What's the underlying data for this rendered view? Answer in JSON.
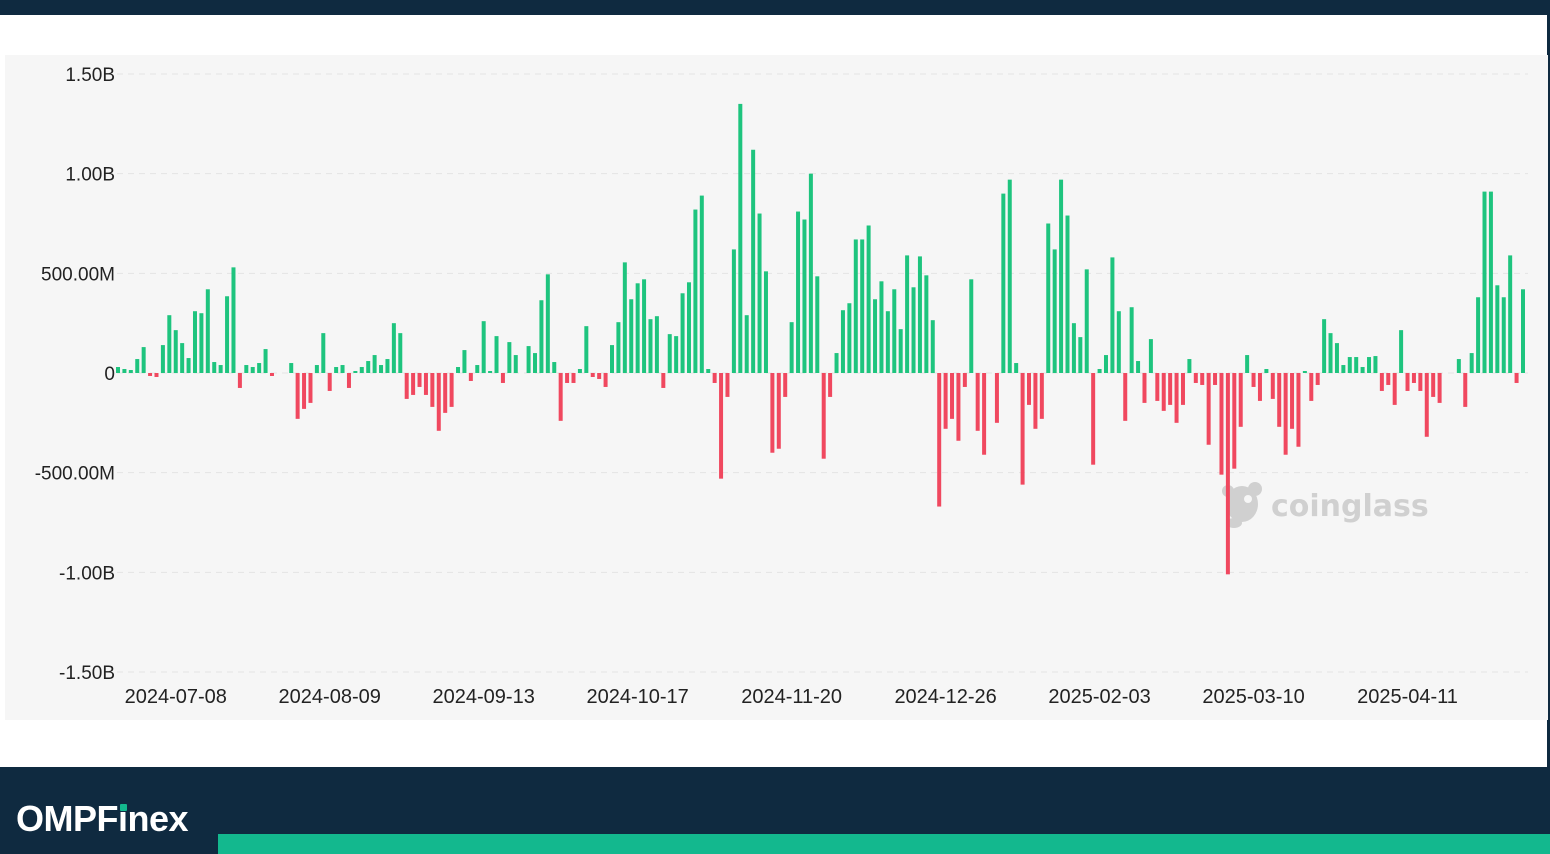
{
  "chart_data": {
    "type": "bar",
    "title": "",
    "xlabel": "",
    "ylabel": "",
    "ylim": [
      -1500000000,
      1500000000
    ],
    "yticks": [
      {
        "value": 1500000000,
        "label": "1.50B"
      },
      {
        "value": 1000000000,
        "label": "1.00B"
      },
      {
        "value": 500000000,
        "label": "500.00M"
      },
      {
        "value": 0,
        "label": "0"
      },
      {
        "value": -500000000,
        "label": "-500.00M"
      },
      {
        "value": -1000000000,
        "label": "-1.00B"
      },
      {
        "value": -1500000000,
        "label": "-1.50B"
      }
    ],
    "xticks": [
      {
        "index": 9,
        "label": "2024-07-08"
      },
      {
        "index": 33,
        "label": "2024-08-09"
      },
      {
        "index": 57,
        "label": "2024-09-13"
      },
      {
        "index": 81,
        "label": "2024-10-17"
      },
      {
        "index": 105,
        "label": "2024-11-20"
      },
      {
        "index": 129,
        "label": "2024-12-26"
      },
      {
        "index": 153,
        "label": "2025-02-03"
      },
      {
        "index": 177,
        "label": "2025-03-10"
      },
      {
        "index": 201,
        "label": "2025-04-11"
      }
    ],
    "positive_color": "#1ec47e",
    "negative_color": "#f0485f",
    "unit": "USD millions",
    "values": [
      30,
      20,
      15,
      70,
      130,
      -15,
      -20,
      140,
      290,
      215,
      150,
      75,
      310,
      300,
      420,
      55,
      40,
      385,
      530,
      -75,
      40,
      30,
      50,
      120,
      -15,
      0,
      0,
      50,
      -230,
      -180,
      -150,
      40,
      200,
      -90,
      30,
      40,
      -75,
      10,
      30,
      60,
      90,
      40,
      70,
      250,
      200,
      -130,
      -110,
      -70,
      -110,
      -170,
      -290,
      -200,
      -170,
      30,
      115,
      -40,
      40,
      260,
      10,
      185,
      -50,
      155,
      90,
      0,
      135,
      100,
      365,
      495,
      55,
      -240,
      -50,
      -50,
      20,
      235,
      -20,
      -30,
      -70,
      140,
      255,
      555,
      370,
      450,
      470,
      270,
      285,
      -75,
      195,
      185,
      400,
      455,
      820,
      890,
      20,
      -50,
      -530,
      -120,
      620,
      1350,
      290,
      1120,
      800,
      510,
      -400,
      -380,
      -120,
      255,
      810,
      770,
      1000,
      485,
      -430,
      -120,
      100,
      315,
      350,
      670,
      670,
      740,
      370,
      460,
      310,
      420,
      220,
      590,
      430,
      585,
      490,
      265,
      -670,
      -280,
      -230,
      -340,
      -70,
      470,
      -290,
      -410,
      0,
      -250,
      900,
      970,
      50,
      -560,
      -160,
      -280,
      -230,
      750,
      620,
      970,
      790,
      250,
      180,
      520,
      -460,
      20,
      90,
      580,
      310,
      -240,
      330,
      60,
      -150,
      170,
      -140,
      -190,
      -160,
      -250,
      -160,
      70,
      -50,
      -60,
      -360,
      -60,
      -510,
      -1010,
      -480,
      -270,
      90,
      -70,
      -140,
      20,
      -130,
      -270,
      -410,
      -280,
      -370,
      10,
      -140,
      -60,
      270,
      200,
      150,
      40,
      80,
      80,
      30,
      80,
      85,
      -90,
      -60,
      -160,
      215,
      -90,
      -50,
      -90,
      -320,
      -120,
      -150,
      0,
      0,
      70,
      -170,
      100,
      380,
      910,
      910,
      440,
      380,
      590,
      -50,
      420
    ]
  },
  "watermark": {
    "text": "coinglass",
    "icon": "coinglass-logo-icon"
  },
  "footer": {
    "brand_text_before": "OMPF",
    "brand_text_i": "i",
    "brand_text_after": "nex",
    "accent_color": "#13b88e",
    "bar_color": "#0f2a40"
  }
}
